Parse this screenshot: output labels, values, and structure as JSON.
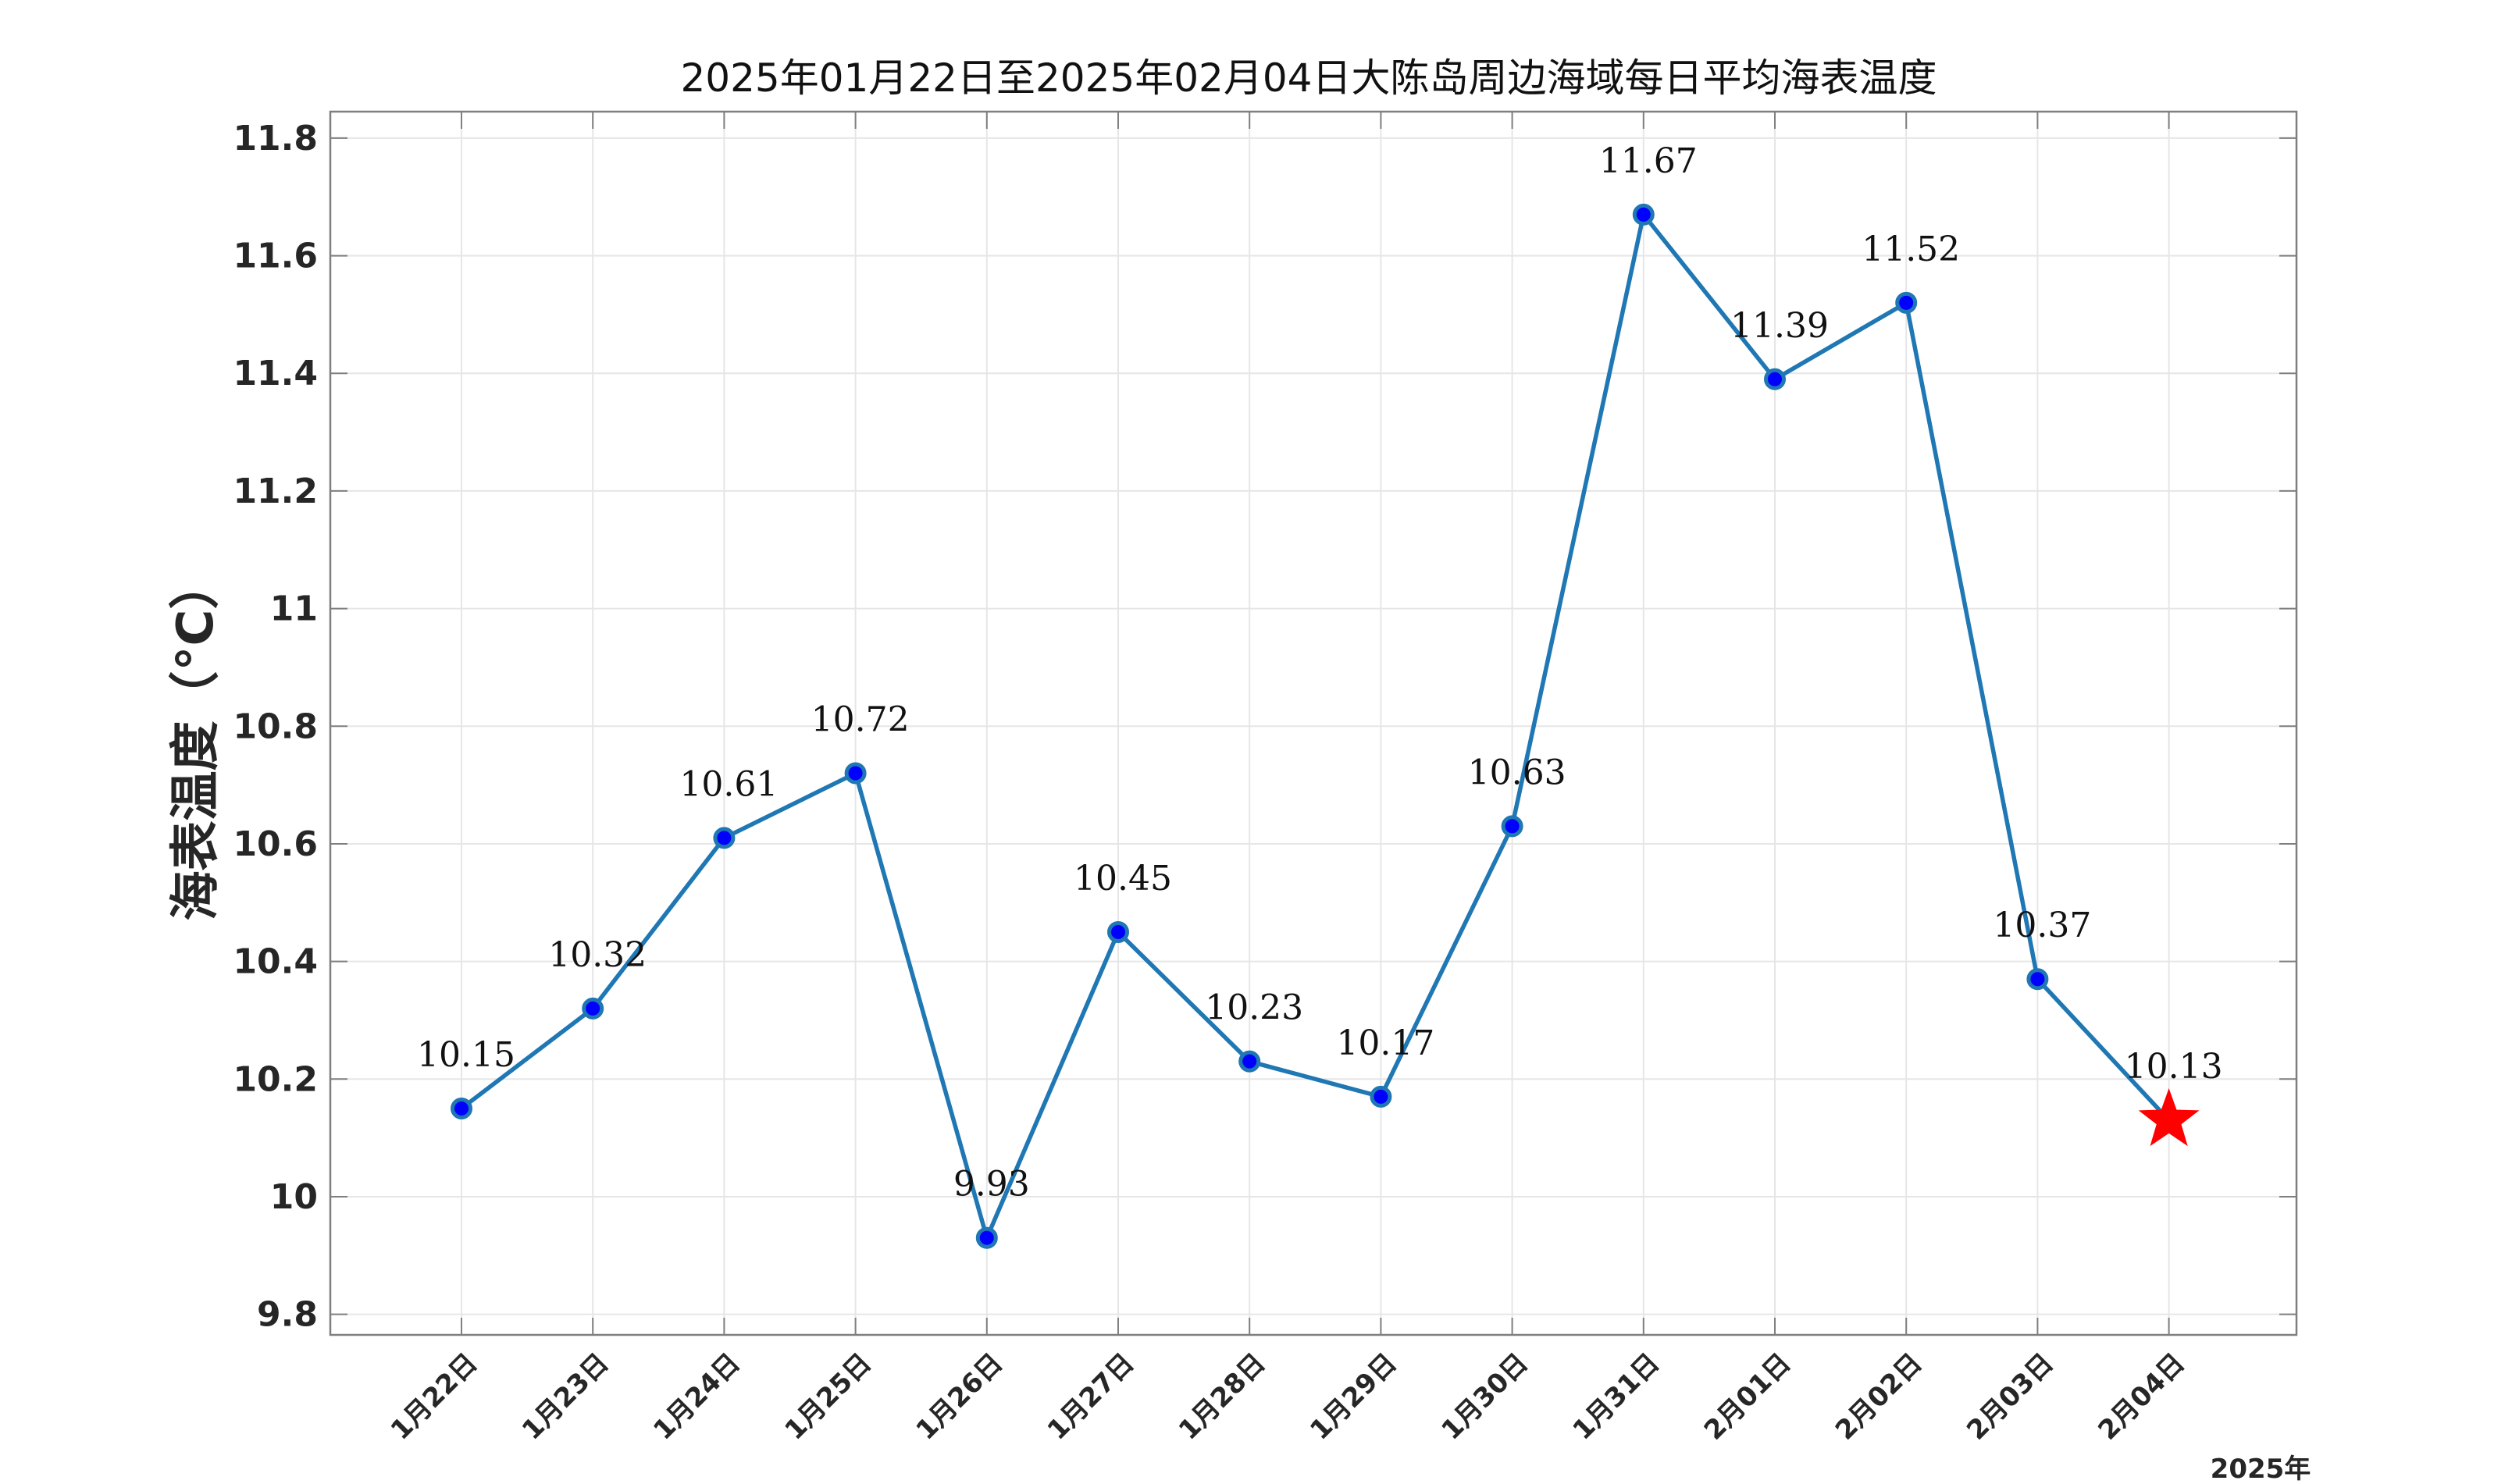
{
  "chart_data": {
    "type": "line",
    "title": "2025年01月22日至2025年02月04日大陈岛周边海域每日平均海表温度",
    "ylabel": "海表温度（°C）",
    "xlabel": "",
    "year_label": "2025年",
    "categories": [
      "1月22日",
      "1月23日",
      "1月24日",
      "1月25日",
      "1月26日",
      "1月27日",
      "1月28日",
      "1月29日",
      "1月30日",
      "1月31日",
      "2月01日",
      "2月02日",
      "2月03日",
      "2月04日"
    ],
    "values": [
      10.15,
      10.32,
      10.61,
      10.72,
      9.93,
      10.45,
      10.23,
      10.17,
      10.63,
      11.67,
      11.39,
      11.52,
      10.37,
      10.13
    ],
    "data_labels": [
      "10.15",
      "10.32",
      "10.61",
      "10.72",
      "9.93",
      "10.45",
      "10.23",
      "10.17",
      "10.63",
      "11.67",
      "11.39",
      "11.52",
      "10.37",
      "10.13"
    ],
    "ylim": [
      9.765,
      11.845
    ],
    "yticks": [
      9.8,
      10,
      10.2,
      10.4,
      10.6,
      10.8,
      11,
      11.2,
      11.4,
      11.6,
      11.8
    ],
    "ytick_labels": [
      "9.8",
      "10",
      "10.2",
      "10.4",
      "10.6",
      "10.8",
      "11",
      "11.2",
      "11.4",
      "11.6",
      "11.8"
    ],
    "grid": true,
    "highlight": "last point marked with red star",
    "colors": {
      "line": "#1f77b4",
      "marker_fill": "#0000ff",
      "marker_edge": "#1f77b4",
      "highlight": "#ff0000",
      "grid": "#e6e6e6",
      "axis": "#7f7f7f"
    }
  }
}
